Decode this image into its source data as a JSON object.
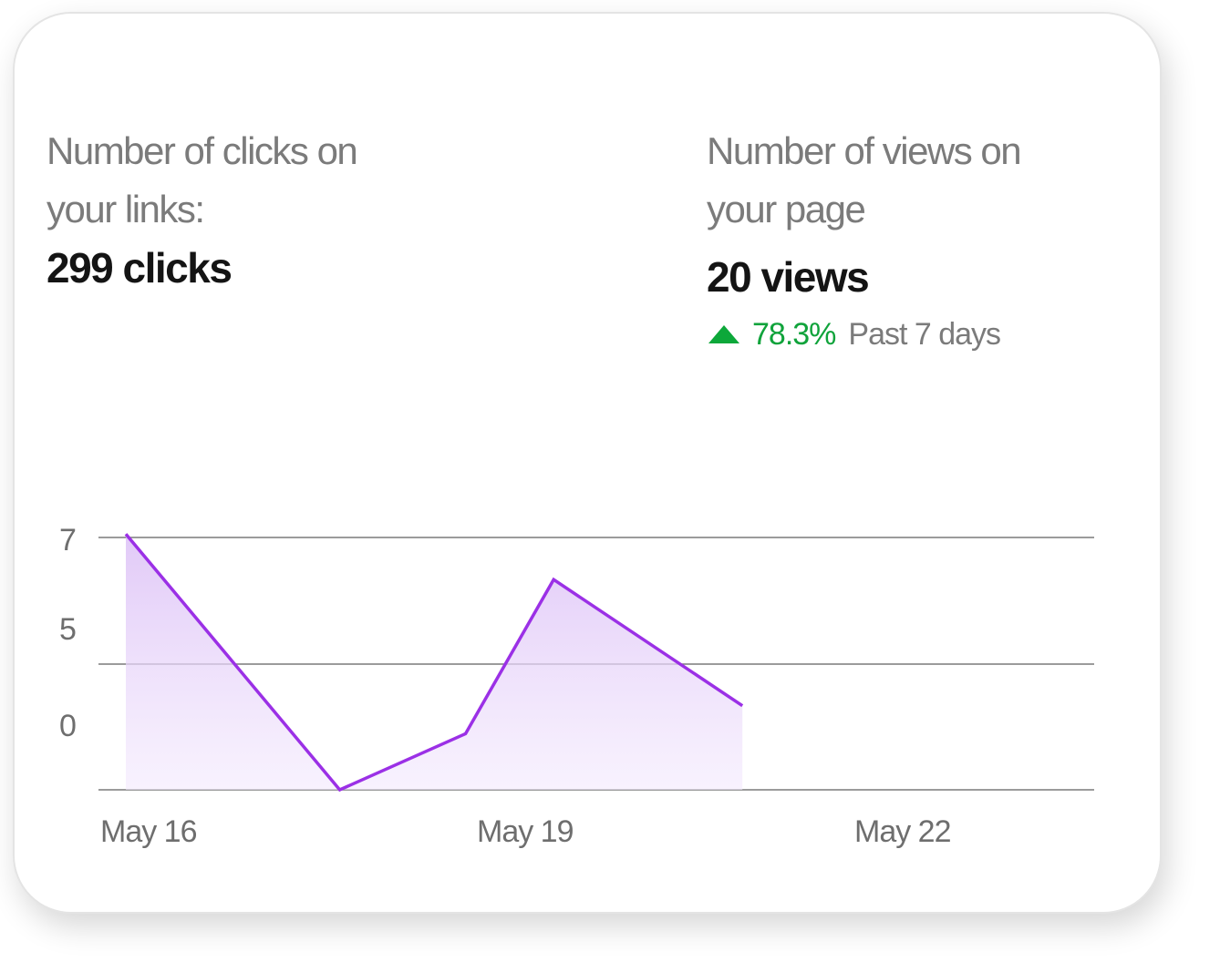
{
  "clicks": {
    "label": "Number of clicks on your links:",
    "value": "299 clicks"
  },
  "views": {
    "label": "Number of views on your page",
    "value": "20 views",
    "change": {
      "direction": "up",
      "percent": "78.3%",
      "period": "Past 7 days",
      "color": "#10a33b"
    }
  },
  "colors": {
    "line": "#9b30e6",
    "fill": "#e9d6fb",
    "grid": "#7a7a7a"
  },
  "chart_data": {
    "type": "area",
    "title": "",
    "xlabel": "",
    "ylabel": "",
    "x_tick_labels": [
      "May 16",
      "May 19",
      "May 22"
    ],
    "y_tick_labels": [
      "7",
      "5",
      "0"
    ],
    "series": [
      {
        "x": [
          "May 16",
          "May 17.7",
          "May 18.7",
          "May 19.4",
          "May 20.9"
        ],
        "values": [
          7.1,
          -0.2,
          1.4,
          5.8,
          2.2
        ]
      }
    ],
    "ylim": [
      -0.2,
      7
    ],
    "grid": true,
    "legend": "none"
  }
}
